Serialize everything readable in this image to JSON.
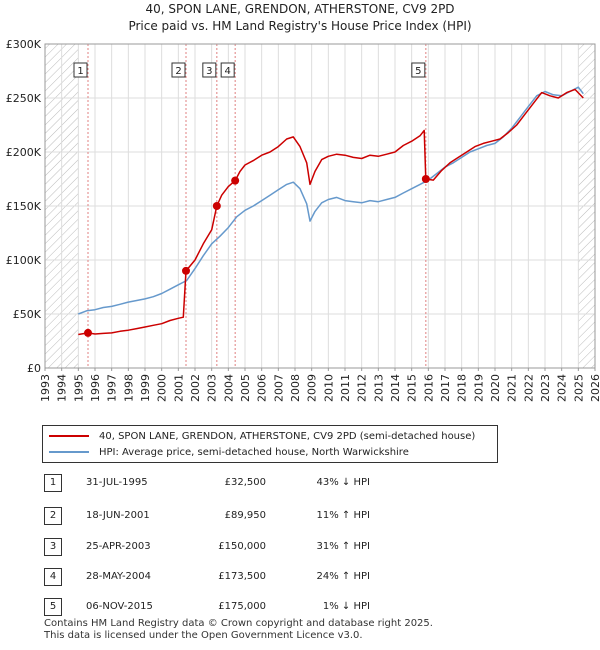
{
  "title_line1": "40, SPON LANE, GRENDON, ATHERSTONE, CV9 2PD",
  "title_line2": "Price paid vs. HM Land Registry's House Price Index (HPI)",
  "colors": {
    "property": "#cc0000",
    "hpi": "#6699cc",
    "grid": "#dddddd",
    "hatch": "#bbbbbb",
    "marker": "#cc0000"
  },
  "chart_data": {
    "type": "line",
    "title": "40, SPON LANE, GRENDON, ATHERSTONE, CV9 2PD — Price paid vs. HM Land Registry's House Price Index (HPI)",
    "xlabel": "",
    "ylabel": "",
    "xlim": [
      1993,
      2026
    ],
    "ylim": [
      0,
      300000
    ],
    "x_ticks": [
      1993,
      1994,
      1995,
      1996,
      1997,
      1998,
      1999,
      2000,
      2001,
      2002,
      2003,
      2004,
      2005,
      2006,
      2007,
      2008,
      2009,
      2010,
      2011,
      2012,
      2013,
      2014,
      2015,
      2016,
      2017,
      2018,
      2019,
      2020,
      2021,
      2022,
      2023,
      2024,
      2025,
      2026
    ],
    "y_ticks": [
      0,
      50000,
      100000,
      150000,
      200000,
      250000,
      300000
    ],
    "y_tick_labels": [
      "£0",
      "£50K",
      "£100K",
      "£150K",
      "£200K",
      "£250K",
      "£300K"
    ],
    "grid": true,
    "hatched_ranges": [
      [
        1993,
        1995.0
      ],
      [
        2025.0,
        2026
      ]
    ],
    "series": [
      {
        "name": "40, SPON LANE, GRENDON, ATHERSTONE, CV9 2PD (semi-detached house)",
        "color": "#cc0000",
        "points": [
          [
            1995.0,
            31000
          ],
          [
            1995.58,
            32500
          ],
          [
            1996.0,
            31500
          ],
          [
            1996.5,
            32000
          ],
          [
            1997.0,
            32500
          ],
          [
            1997.5,
            34000
          ],
          [
            1998.0,
            35000
          ],
          [
            1998.5,
            36500
          ],
          [
            1999.0,
            38000
          ],
          [
            1999.5,
            39500
          ],
          [
            2000.0,
            41000
          ],
          [
            2000.5,
            44000
          ],
          [
            2001.0,
            46000
          ],
          [
            2001.3,
            47000
          ],
          [
            2001.46,
            89950
          ],
          [
            2002.0,
            100000
          ],
          [
            2002.5,
            115000
          ],
          [
            2003.0,
            128000
          ],
          [
            2003.31,
            150000
          ],
          [
            2003.6,
            160000
          ],
          [
            2004.0,
            168000
          ],
          [
            2004.41,
            173500
          ],
          [
            2004.7,
            182000
          ],
          [
            2005.0,
            188000
          ],
          [
            2005.5,
            192000
          ],
          [
            2006.0,
            197000
          ],
          [
            2006.5,
            200000
          ],
          [
            2007.0,
            205000
          ],
          [
            2007.5,
            212000
          ],
          [
            2007.9,
            214000
          ],
          [
            2008.3,
            205000
          ],
          [
            2008.7,
            190000
          ],
          [
            2008.9,
            170000
          ],
          [
            2009.2,
            182000
          ],
          [
            2009.6,
            193000
          ],
          [
            2010.0,
            196000
          ],
          [
            2010.5,
            198000
          ],
          [
            2011.0,
            197000
          ],
          [
            2011.5,
            195000
          ],
          [
            2012.0,
            194000
          ],
          [
            2012.5,
            197000
          ],
          [
            2013.0,
            196000
          ],
          [
            2013.5,
            198000
          ],
          [
            2014.0,
            200000
          ],
          [
            2014.5,
            206000
          ],
          [
            2015.0,
            210000
          ],
          [
            2015.5,
            215000
          ],
          [
            2015.75,
            220000
          ],
          [
            2015.85,
            175000
          ],
          [
            2016.3,
            174000
          ],
          [
            2016.8,
            183000
          ],
          [
            2017.3,
            190000
          ],
          [
            2017.8,
            195000
          ],
          [
            2018.3,
            200000
          ],
          [
            2018.8,
            205000
          ],
          [
            2019.3,
            208000
          ],
          [
            2019.8,
            210000
          ],
          [
            2020.3,
            212000
          ],
          [
            2020.8,
            218000
          ],
          [
            2021.3,
            225000
          ],
          [
            2021.8,
            235000
          ],
          [
            2022.3,
            245000
          ],
          [
            2022.8,
            255000
          ],
          [
            2023.3,
            252000
          ],
          [
            2023.8,
            250000
          ],
          [
            2024.3,
            255000
          ],
          [
            2024.8,
            258000
          ],
          [
            2025.3,
            250000
          ]
        ]
      },
      {
        "name": "HPI: Average price, semi-detached house, North Warwickshire",
        "color": "#6699cc",
        "points": [
          [
            1995.0,
            50000
          ],
          [
            1995.5,
            53000
          ],
          [
            1996.0,
            54000
          ],
          [
            1996.5,
            56000
          ],
          [
            1997.0,
            57000
          ],
          [
            1997.5,
            59000
          ],
          [
            1998.0,
            61000
          ],
          [
            1998.5,
            62500
          ],
          [
            1999.0,
            64000
          ],
          [
            1999.5,
            66000
          ],
          [
            2000.0,
            69000
          ],
          [
            2000.5,
            73000
          ],
          [
            2001.0,
            77000
          ],
          [
            2001.5,
            81000
          ],
          [
            2002.0,
            92000
          ],
          [
            2002.5,
            104000
          ],
          [
            2003.0,
            115000
          ],
          [
            2003.5,
            122000
          ],
          [
            2004.0,
            130000
          ],
          [
            2004.5,
            140000
          ],
          [
            2005.0,
            146000
          ],
          [
            2005.5,
            150000
          ],
          [
            2006.0,
            155000
          ],
          [
            2006.5,
            160000
          ],
          [
            2007.0,
            165000
          ],
          [
            2007.5,
            170000
          ],
          [
            2007.9,
            172000
          ],
          [
            2008.3,
            166000
          ],
          [
            2008.7,
            152000
          ],
          [
            2008.9,
            136000
          ],
          [
            2009.2,
            145000
          ],
          [
            2009.6,
            153000
          ],
          [
            2010.0,
            156000
          ],
          [
            2010.5,
            158000
          ],
          [
            2011.0,
            155000
          ],
          [
            2011.5,
            154000
          ],
          [
            2012.0,
            153000
          ],
          [
            2012.5,
            155000
          ],
          [
            2013.0,
            154000
          ],
          [
            2013.5,
            156000
          ],
          [
            2014.0,
            158000
          ],
          [
            2014.5,
            162000
          ],
          [
            2015.0,
            166000
          ],
          [
            2015.5,
            170000
          ],
          [
            2016.0,
            174000
          ],
          [
            2016.5,
            180000
          ],
          [
            2017.0,
            186000
          ],
          [
            2017.5,
            190000
          ],
          [
            2018.0,
            195000
          ],
          [
            2018.5,
            200000
          ],
          [
            2019.0,
            203000
          ],
          [
            2019.5,
            206000
          ],
          [
            2020.0,
            208000
          ],
          [
            2020.5,
            214000
          ],
          [
            2021.0,
            222000
          ],
          [
            2021.5,
            232000
          ],
          [
            2022.0,
            242000
          ],
          [
            2022.5,
            252000
          ],
          [
            2023.0,
            256000
          ],
          [
            2023.5,
            253000
          ],
          [
            2024.0,
            252000
          ],
          [
            2024.5,
            256000
          ],
          [
            2025.0,
            260000
          ],
          [
            2025.3,
            254000
          ]
        ]
      }
    ],
    "sale_markers": [
      {
        "label": "1",
        "x": 1995.58,
        "y": 32500
      },
      {
        "label": "2",
        "x": 2001.46,
        "y": 89950
      },
      {
        "label": "3",
        "x": 2003.31,
        "y": 150000
      },
      {
        "label": "4",
        "x": 2004.41,
        "y": 173500
      },
      {
        "label": "5",
        "x": 2015.85,
        "y": 175000
      }
    ]
  },
  "legend": {
    "property_label": "40, SPON LANE, GRENDON, ATHERSTONE, CV9 2PD (semi-detached house)",
    "hpi_label": "HPI: Average price, semi-detached house, North Warwickshire"
  },
  "sales": [
    {
      "num": "1",
      "date": "31-JUL-1995",
      "price": "£32,500",
      "hpi": "43% ↓ HPI"
    },
    {
      "num": "2",
      "date": "18-JUN-2001",
      "price": "£89,950",
      "hpi": "11% ↑ HPI"
    },
    {
      "num": "3",
      "date": "25-APR-2003",
      "price": "£150,000",
      "hpi": "31% ↑ HPI"
    },
    {
      "num": "4",
      "date": "28-MAY-2004",
      "price": "£173,500",
      "hpi": "24% ↑ HPI"
    },
    {
      "num": "5",
      "date": "06-NOV-2015",
      "price": "£175,000",
      "hpi": "1% ↓ HPI"
    }
  ],
  "footer": {
    "line1": "Contains HM Land Registry data © Crown copyright and database right 2025.",
    "line2": "This data is licensed under the Open Government Licence v3.0."
  }
}
